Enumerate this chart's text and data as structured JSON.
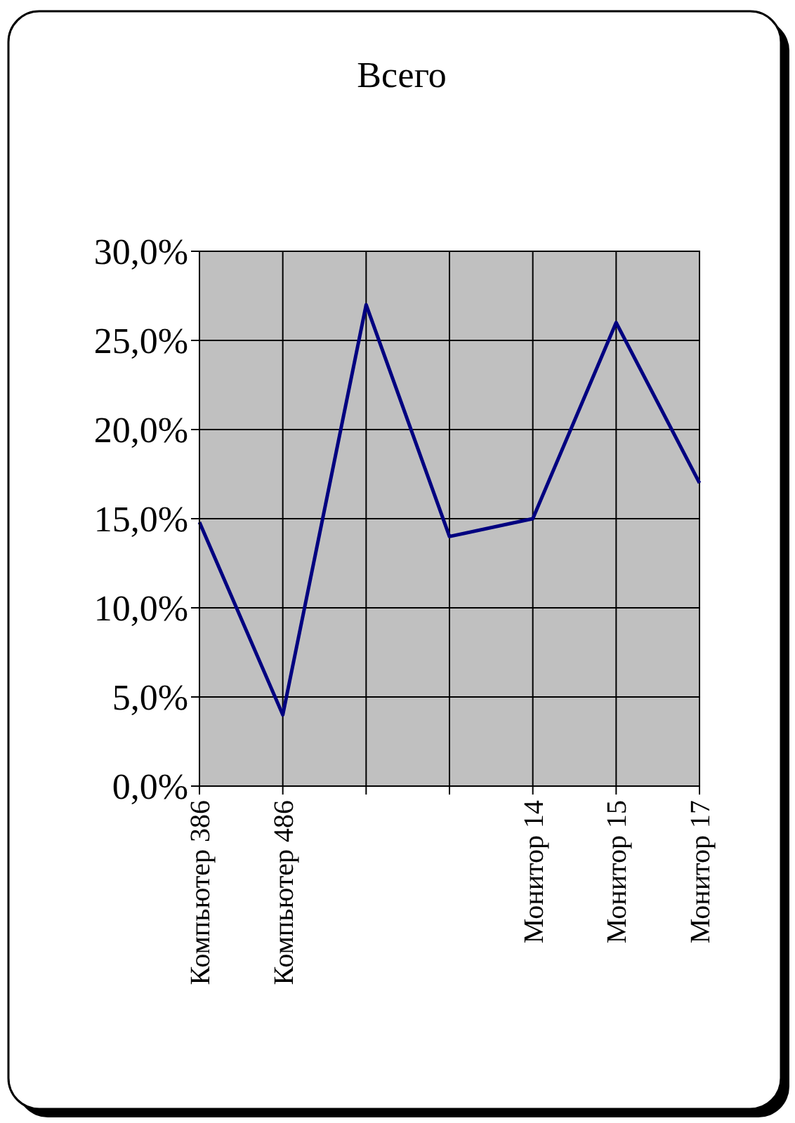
{
  "chart_data": {
    "type": "line",
    "title": "Всего",
    "categories": [
      "Компьютер 386",
      "Компьютер 486",
      null,
      null,
      "Монитор 14",
      "Монитор 15",
      "Монитор 17"
    ],
    "series": [
      {
        "color": "#000080",
        "values": [
          14.8,
          4,
          27,
          14,
          15,
          26,
          17
        ]
      }
    ],
    "ylim": [
      0,
      30
    ],
    "yticks": [
      {
        "value": 0,
        "label": "0,0%"
      },
      {
        "value": 5,
        "label": "5,0%"
      },
      {
        "value": 10,
        "label": "10,0%"
      },
      {
        "value": 15,
        "label": "15,0%"
      },
      {
        "value": 20,
        "label": "20,0%"
      },
      {
        "value": 25,
        "label": "25,0%"
      },
      {
        "value": 30,
        "label": "30,0%"
      }
    ],
    "grid": true,
    "marker": "none",
    "line_style": "solid"
  }
}
